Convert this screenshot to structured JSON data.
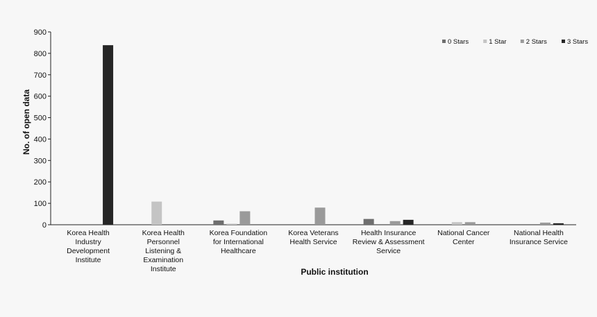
{
  "chart_data": {
    "type": "bar",
    "title": "",
    "xlabel": "Public institution",
    "ylabel": "No. of open data",
    "ylim": [
      0,
      900
    ],
    "yticks": [
      0,
      100,
      200,
      300,
      400,
      500,
      600,
      700,
      800,
      900
    ],
    "grid": false,
    "legend": "top-right",
    "categories": [
      [
        "Korea Health",
        "Industry",
        "Development",
        "Institute"
      ],
      [
        "Korea Health",
        "Personnel",
        "Listening &",
        "Examination",
        "Institute"
      ],
      [
        "Korea Foundation",
        "for International",
        "Healthcare"
      ],
      [
        "Korea Veterans",
        "Health Service"
      ],
      [
        "Health Insurance",
        "Review & Assessment",
        "Service"
      ],
      [
        "National Cancer",
        "Center"
      ],
      [
        "National Health",
        "Insurance Service"
      ]
    ],
    "series": [
      {
        "name": "0 Stars",
        "color": "#6e6e6e",
        "values": [
          0,
          0,
          20,
          0,
          27,
          0,
          0
        ]
      },
      {
        "name": "1 Star",
        "color": "#c4c4c4",
        "values": [
          0,
          108,
          5,
          0,
          0,
          12,
          0
        ]
      },
      {
        "name": "2 Stars",
        "color": "#9a9a9a",
        "values": [
          0,
          0,
          63,
          80,
          17,
          12,
          10
        ]
      },
      {
        "name": "3 Stars",
        "color": "#262626",
        "values": [
          838,
          0,
          0,
          0,
          23,
          0,
          7
        ]
      }
    ]
  }
}
